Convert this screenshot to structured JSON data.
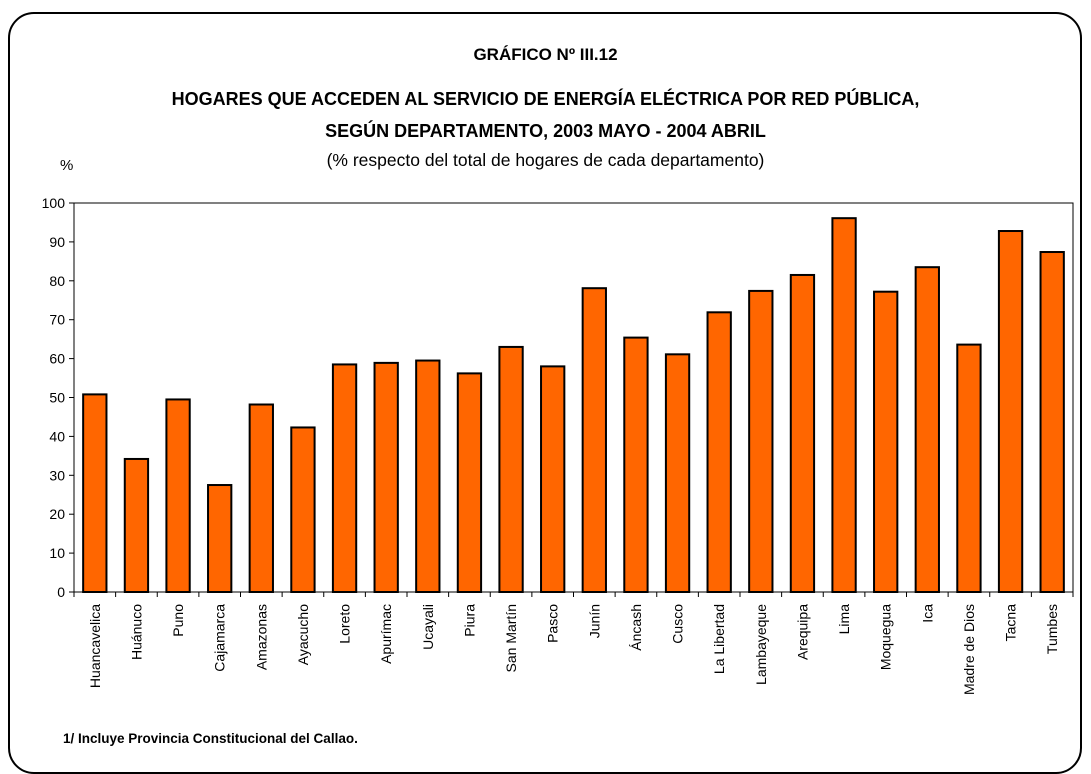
{
  "header": {
    "number": "GRÁFICO Nº III.12",
    "title_line1": "HOGARES QUE ACCEDEN AL SERVICIO DE ENERGÍA ELÉCTRICA POR RED PÚBLICA,",
    "title_line2": "SEGÚN DEPARTAMENTO, 2003 MAYO - 2004 ABRIL",
    "subtitle": "(% respecto del total de hogares de cada departamento)",
    "unit": "%"
  },
  "footnote": "1/ Incluye Provincia Constitucional del Callao.",
  "colors": {
    "bar": "#ff6600",
    "bar_stroke": "#000000"
  },
  "chart_data": {
    "type": "bar",
    "title": "HOGARES QUE ACCEDEN AL SERVICIO DE ENERGÍA ELÉCTRICA POR RED PÚBLICA, SEGÚN DEPARTAMENTO, 2003 MAYO - 2004 ABRIL",
    "subtitle": "(% respecto del total de hogares de cada departamento)",
    "ylabel": "%",
    "xlabel": "",
    "ylim": [
      0,
      100
    ],
    "yticks": [
      0,
      10,
      20,
      30,
      40,
      50,
      60,
      70,
      80,
      90,
      100
    ],
    "grid": false,
    "categories": [
      "Huancavelica",
      "Huánuco",
      "Puno",
      "Cajamarca",
      "Amazonas",
      "Ayacucho",
      "Loreto",
      "Apurímac",
      "Ucayali",
      "Piura",
      "San Martín",
      "Pasco",
      "Junín",
      "Áncash",
      "Cusco",
      "La Libertad",
      "Lambayeque",
      "Arequipa",
      "Lima",
      "Moquegua",
      "Ica",
      "Madre de Dios",
      "Tacna",
      "Tumbes"
    ],
    "values": [
      50.8,
      34.2,
      49.5,
      27.5,
      48.2,
      42.3,
      58.5,
      58.9,
      59.5,
      56.2,
      63.0,
      58.0,
      78.1,
      65.4,
      61.1,
      71.9,
      77.4,
      81.5,
      96.1,
      77.2,
      83.5,
      63.6,
      92.8,
      87.4
    ]
  }
}
